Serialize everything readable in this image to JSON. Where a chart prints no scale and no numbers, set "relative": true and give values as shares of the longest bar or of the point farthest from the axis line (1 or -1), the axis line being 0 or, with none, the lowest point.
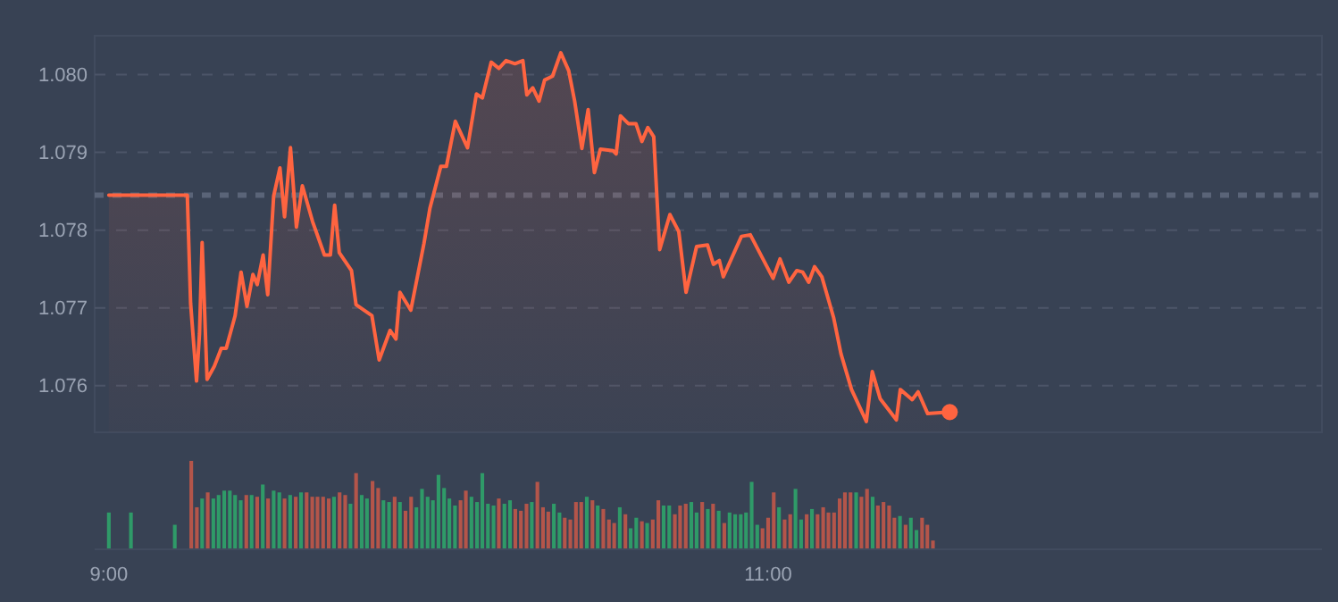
{
  "chart_data": [
    {
      "type": "area",
      "xlim": [
        8.957,
        12.68
      ],
      "ylim": [
        1.0754,
        1.0805
      ],
      "yticks": [
        {
          "value": 1.076,
          "label": "1.076"
        },
        {
          "value": 1.077,
          "label": "1.077"
        },
        {
          "value": 1.078,
          "label": "1.078"
        },
        {
          "value": 1.079,
          "label": "1.079"
        },
        {
          "value": 1.08,
          "label": "1.080"
        }
      ],
      "tick_labels": "y",
      "grid": "y",
      "marker": "none",
      "line_style": "solid",
      "ref_lines": [
        {
          "axis": "y",
          "value": 1.07845,
          "color": "#5a6478",
          "line_style": "dashed"
        }
      ],
      "series": [
        {
          "color": "#ff6440",
          "x": [
            9,
            9.238,
            9.248,
            9.266,
            9.275,
            9.283,
            9.298,
            9.32,
            9.341,
            9.356,
            9.383,
            9.401,
            9.419,
            9.437,
            9.45,
            9.468,
            9.482,
            9.5,
            9.519,
            9.533,
            9.551,
            9.569,
            9.587,
            9.618,
            9.654,
            9.672,
            9.685,
            9.699,
            9.736,
            9.75,
            9.798,
            9.82,
            9.853,
            9.871,
            9.883,
            9.916,
            9.956,
            9.974,
            10.007,
            10.024,
            10.051,
            10.088,
            10.115,
            10.133,
            10.16,
            10.183,
            10.205,
            10.232,
            10.256,
            10.268,
            10.286,
            10.305,
            10.322,
            10.346,
            10.371,
            10.395,
            10.413,
            10.435,
            10.454,
            10.473,
            10.491,
            10.53,
            10.539,
            10.552,
            10.576,
            10.599,
            10.617,
            10.635,
            10.653,
            10.671,
            10.702,
            10.729,
            10.751,
            10.783,
            10.816,
            10.834,
            10.852,
            10.864,
            10.919,
            10.946,
            11.015,
            11.036,
            11.063,
            11.087,
            11.105,
            11.123,
            11.141,
            11.163,
            11.199,
            11.221,
            11.253,
            11.298,
            11.316,
            11.34,
            11.389,
            11.401,
            11.437,
            11.455,
            11.484,
            11.551
          ],
          "values": [
            1.07845,
            1.07845,
            1.07706,
            1.07606,
            1.07667,
            1.07784,
            1.07608,
            1.07625,
            1.07648,
            1.07648,
            1.0769,
            1.07746,
            1.07702,
            1.07743,
            1.0773,
            1.07768,
            1.07717,
            1.07844,
            1.0788,
            1.07817,
            1.07906,
            1.07804,
            1.07857,
            1.07811,
            1.07768,
            1.07768,
            1.07832,
            1.07771,
            1.07748,
            1.07704,
            1.0769,
            1.07633,
            1.07671,
            1.0766,
            1.0772,
            1.07697,
            1.07783,
            1.07828,
            1.07882,
            1.07882,
            1.0794,
            1.07906,
            1.07975,
            1.0797,
            1.08016,
            1.08008,
            1.08018,
            1.08014,
            1.08018,
            1.07974,
            1.07983,
            1.07966,
            1.07993,
            1.07998,
            1.08028,
            1.08005,
            1.07966,
            1.07905,
            1.07955,
            1.07874,
            1.07904,
            1.07902,
            1.07898,
            1.07947,
            1.07937,
            1.07937,
            1.07914,
            1.07932,
            1.0792,
            1.07775,
            1.0782,
            1.07798,
            1.0772,
            1.07779,
            1.07781,
            1.07756,
            1.07761,
            1.0774,
            1.07792,
            1.07794,
            1.07738,
            1.07763,
            1.07733,
            1.07748,
            1.07746,
            1.07733,
            1.07753,
            1.0774,
            1.07687,
            1.07641,
            1.07595,
            1.07554,
            1.07618,
            1.07583,
            1.07556,
            1.07595,
            1.07582,
            1.07592,
            1.07564,
            1.07566
          ]
        },
        {
          "type": "scatter",
          "marker": "circle",
          "color": "#ff6440",
          "x": [
            11.551
          ],
          "values": [
            1.07566
          ]
        }
      ]
    },
    {
      "type": "bar",
      "relative": true,
      "xlim": [
        8.957,
        12.68
      ],
      "xticks": [
        {
          "value": 9,
          "label": "9:00"
        },
        {
          "value": 11,
          "label": "11:00"
        }
      ],
      "tick_labels": "x",
      "x": [
        9,
        9.067,
        9.2,
        9.25,
        9.267,
        9.283,
        9.3,
        9.317,
        9.333,
        9.35,
        9.367,
        9.383,
        9.4,
        9.417,
        9.433,
        9.45,
        9.467,
        9.483,
        9.5,
        9.517,
        9.533,
        9.55,
        9.567,
        9.583,
        9.6,
        9.617,
        9.633,
        9.65,
        9.667,
        9.683,
        9.7,
        9.717,
        9.733,
        9.75,
        9.767,
        9.783,
        9.8,
        9.817,
        9.833,
        9.85,
        9.867,
        9.883,
        9.9,
        9.917,
        9.933,
        9.95,
        9.967,
        9.983,
        10,
        10.017,
        10.033,
        10.05,
        10.067,
        10.083,
        10.1,
        10.117,
        10.133,
        10.15,
        10.167,
        10.183,
        10.2,
        10.217,
        10.233,
        10.25,
        10.267,
        10.283,
        10.3,
        10.317,
        10.333,
        10.35,
        10.367,
        10.383,
        10.4,
        10.417,
        10.433,
        10.45,
        10.467,
        10.483,
        10.5,
        10.517,
        10.533,
        10.55,
        10.567,
        10.583,
        10.6,
        10.617,
        10.633,
        10.65,
        10.667,
        10.683,
        10.7,
        10.717,
        10.733,
        10.75,
        10.767,
        10.783,
        10.8,
        10.817,
        10.833,
        10.85,
        10.867,
        10.883,
        10.9,
        10.917,
        10.933,
        10.95,
        10.967,
        10.983,
        11,
        11.017,
        11.033,
        11.05,
        11.067,
        11.083,
        11.1,
        11.117,
        11.133,
        11.15,
        11.167,
        11.183,
        11.2,
        11.217,
        11.233,
        11.25,
        11.267,
        11.283,
        11.3,
        11.317,
        11.333,
        11.35,
        11.367,
        11.383,
        11.4,
        11.417,
        11.433,
        11.45,
        11.467,
        11.483,
        11.5
      ],
      "values": [
        0.41,
        0.41,
        0.27,
        1,
        0.47,
        0.57,
        0.64,
        0.57,
        0.61,
        0.66,
        0.66,
        0.61,
        0.55,
        0.61,
        0.61,
        0.59,
        0.73,
        0.57,
        0.66,
        0.64,
        0.57,
        0.61,
        0.59,
        0.64,
        0.64,
        0.59,
        0.59,
        0.59,
        0.57,
        0.59,
        0.64,
        0.61,
        0.51,
        0.86,
        0.61,
        0.57,
        0.77,
        0.69,
        0.55,
        0.53,
        0.59,
        0.53,
        0.43,
        0.59,
        0.47,
        0.68,
        0.59,
        0.55,
        0.84,
        0.69,
        0.57,
        0.49,
        0.55,
        0.66,
        0.59,
        0.53,
        0.86,
        0.51,
        0.49,
        0.57,
        0.51,
        0.55,
        0.45,
        0.43,
        0.51,
        0.53,
        0.76,
        0.47,
        0.42,
        0.51,
        0.41,
        0.35,
        0.33,
        0.53,
        0.53,
        0.59,
        0.55,
        0.49,
        0.45,
        0.33,
        0.29,
        0.47,
        0.39,
        0.23,
        0.35,
        0.31,
        0.29,
        0.33,
        0.55,
        0.49,
        0.49,
        0.39,
        0.49,
        0.51,
        0.53,
        0.41,
        0.53,
        0.45,
        0.51,
        0.43,
        0.29,
        0.41,
        0.39,
        0.39,
        0.41,
        0.76,
        0.27,
        0.23,
        0.35,
        0.64,
        0.47,
        0.33,
        0.39,
        0.68,
        0.33,
        0.39,
        0.45,
        0.39,
        0.47,
        0.41,
        0.41,
        0.57,
        0.64,
        0.64,
        0.64,
        0.59,
        0.68,
        0.59,
        0.49,
        0.53,
        0.49,
        0.35,
        0.37,
        0.27,
        0.35,
        0.21,
        0.35,
        0.27,
        0.09
      ],
      "colors": [
        "#2f9a68",
        "#2f9a68",
        "#2f9a68",
        "#b4554a",
        "#b4554a",
        "#2f9a68",
        "#b4554a",
        "#2f9a68",
        "#2f9a68",
        "#2f9a68",
        "#2f9a68",
        "#2f9a68",
        "#2f9a68",
        "#b4554a",
        "#2f9a68",
        "#b4554a",
        "#2f9a68",
        "#b4554a",
        "#2f9a68",
        "#2f9a68",
        "#b4554a",
        "#2f9a68",
        "#b4554a",
        "#2f9a68",
        "#b4554a",
        "#b4554a",
        "#b4554a",
        "#b4554a",
        "#b4554a",
        "#2f9a68",
        "#b4554a",
        "#b4554a",
        "#2f9a68",
        "#b4554a",
        "#2f9a68",
        "#2f9a68",
        "#b4554a",
        "#b4554a",
        "#2f9a68",
        "#2f9a68",
        "#b4554a",
        "#2f9a68",
        "#b4554a",
        "#b4554a",
        "#2f9a68",
        "#2f9a68",
        "#2f9a68",
        "#2f9a68",
        "#2f9a68",
        "#2f9a68",
        "#2f9a68",
        "#2f9a68",
        "#b4554a",
        "#b4554a",
        "#2f9a68",
        "#2f9a68",
        "#2f9a68",
        "#2f9a68",
        "#2f9a68",
        "#b4554a",
        "#2f9a68",
        "#2f9a68",
        "#b4554a",
        "#b4554a",
        "#b4554a",
        "#2f9a68",
        "#b4554a",
        "#b4554a",
        "#b4554a",
        "#2f9a68",
        "#2f9a68",
        "#b4554a",
        "#b4554a",
        "#b4554a",
        "#b4554a",
        "#2f9a68",
        "#b4554a",
        "#2f9a68",
        "#b4554a",
        "#b4554a",
        "#b4554a",
        "#2f9a68",
        "#b4554a",
        "#2f9a68",
        "#2f9a68",
        "#b4554a",
        "#2f9a68",
        "#b4554a",
        "#b4554a",
        "#2f9a68",
        "#2f9a68",
        "#b4554a",
        "#b4554a",
        "#b4554a",
        "#2f9a68",
        "#2f9a68",
        "#b4554a",
        "#2f9a68",
        "#b4554a",
        "#2f9a68",
        "#b4554a",
        "#2f9a68",
        "#2f9a68",
        "#2f9a68",
        "#2f9a68",
        "#2f9a68",
        "#2f9a68",
        "#b4554a",
        "#b4554a",
        "#b4554a",
        "#2f9a68",
        "#b4554a",
        "#b4554a",
        "#2f9a68",
        "#2f9a68",
        "#b4554a",
        "#2f9a68",
        "#b4554a",
        "#b4554a",
        "#b4554a",
        "#b4554a",
        "#b4554a",
        "#b4554a",
        "#b4554a",
        "#2f9a68",
        "#b4554a",
        "#b4554a",
        "#2f9a68",
        "#b4554a",
        "#b4554a",
        "#b4554a",
        "#b4554a",
        "#2f9a68",
        "#b4554a",
        "#2f9a68",
        "#2f9a68",
        "#b4554a",
        "#b4554a",
        "#b4554a"
      ]
    }
  ]
}
